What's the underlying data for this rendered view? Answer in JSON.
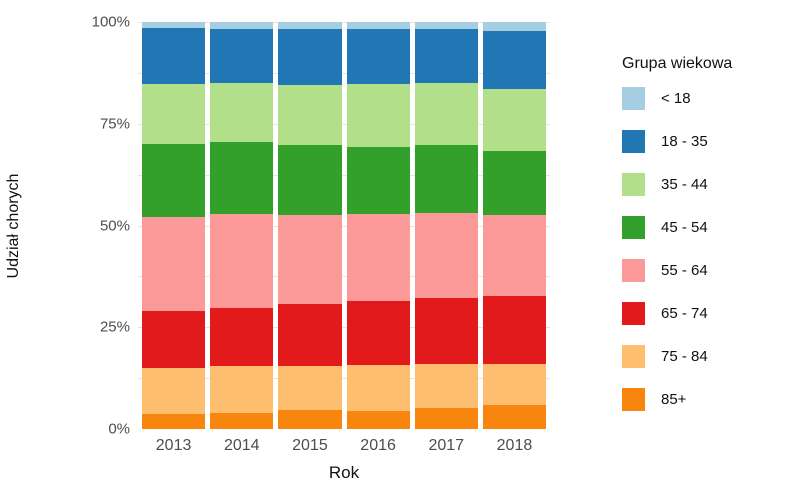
{
  "chart_data": {
    "type": "bar",
    "variant": "stacked-percent",
    "title": "",
    "xlabel": "Rok",
    "ylabel": "Udział chorych",
    "ylim": [
      0,
      100
    ],
    "yticks": [
      {
        "label": "0%",
        "value": 0
      },
      {
        "label": "25%",
        "value": 25
      },
      {
        "label": "50%",
        "value": 50
      },
      {
        "label": "75%",
        "value": 75
      },
      {
        "label": "100%",
        "value": 100
      }
    ],
    "grid_values": [
      12.5,
      25,
      37.5,
      50,
      62.5,
      75,
      87.5,
      100
    ],
    "grid_color": "#e4e4e4",
    "legend_title": "Grupa wiekowa",
    "legend_position": "right",
    "categories": [
      "2013",
      "2014",
      "2015",
      "2016",
      "2017",
      "2018"
    ],
    "series_bottom_to_top": [
      {
        "name": "85+",
        "color": "#f8860e",
        "values": [
          3.7,
          3.9,
          4.6,
          4.5,
          5.1,
          5.8
        ]
      },
      {
        "name": "75 - 84",
        "color": "#fdbf6f",
        "values": [
          11.3,
          11.7,
          10.9,
          11.3,
          10.9,
          10.2
        ]
      },
      {
        "name": "65 - 74",
        "color": "#e31a1c",
        "values": [
          14.1,
          14.1,
          15.2,
          15.7,
          16.2,
          16.8
        ]
      },
      {
        "name": "55 - 64",
        "color": "#fb9a99",
        "values": [
          23.1,
          23.1,
          22.0,
          21.3,
          20.8,
          19.9
        ]
      },
      {
        "name": "45 - 54",
        "color": "#33a02c",
        "values": [
          17.9,
          17.7,
          17.0,
          16.6,
          16.7,
          15.7
        ]
      },
      {
        "name": "35 - 44",
        "color": "#b2df8a",
        "values": [
          14.8,
          14.6,
          14.8,
          15.4,
          15.3,
          15.2
        ]
      },
      {
        "name": "18 - 35",
        "color": "#2176b4",
        "values": [
          13.6,
          13.3,
          13.7,
          13.6,
          13.4,
          14.2
        ]
      },
      {
        "name": "< 18",
        "color": "#a6cee3",
        "values": [
          1.5,
          1.6,
          1.8,
          1.6,
          1.6,
          2.2
        ]
      }
    ],
    "legend_order_top_to_bottom": [
      "< 18",
      "18 - 35",
      "35 - 44",
      "45 - 54",
      "55 - 64",
      "65 - 74",
      "75 - 84",
      "85+"
    ]
  }
}
